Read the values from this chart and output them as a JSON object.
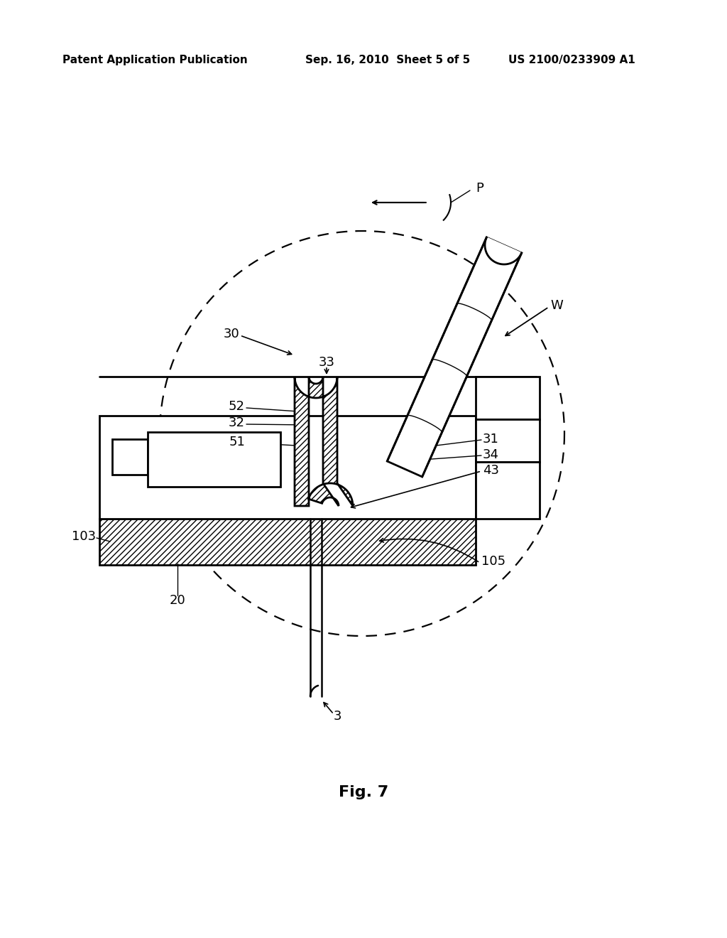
{
  "bg": "#ffffff",
  "lc": "#000000",
  "header_left": "Patent Application Publication",
  "header_mid": "Sep. 16, 2010  Sheet 5 of 5",
  "header_right": "US 2100/0233909 A1",
  "fig_label": "Fig. 7"
}
